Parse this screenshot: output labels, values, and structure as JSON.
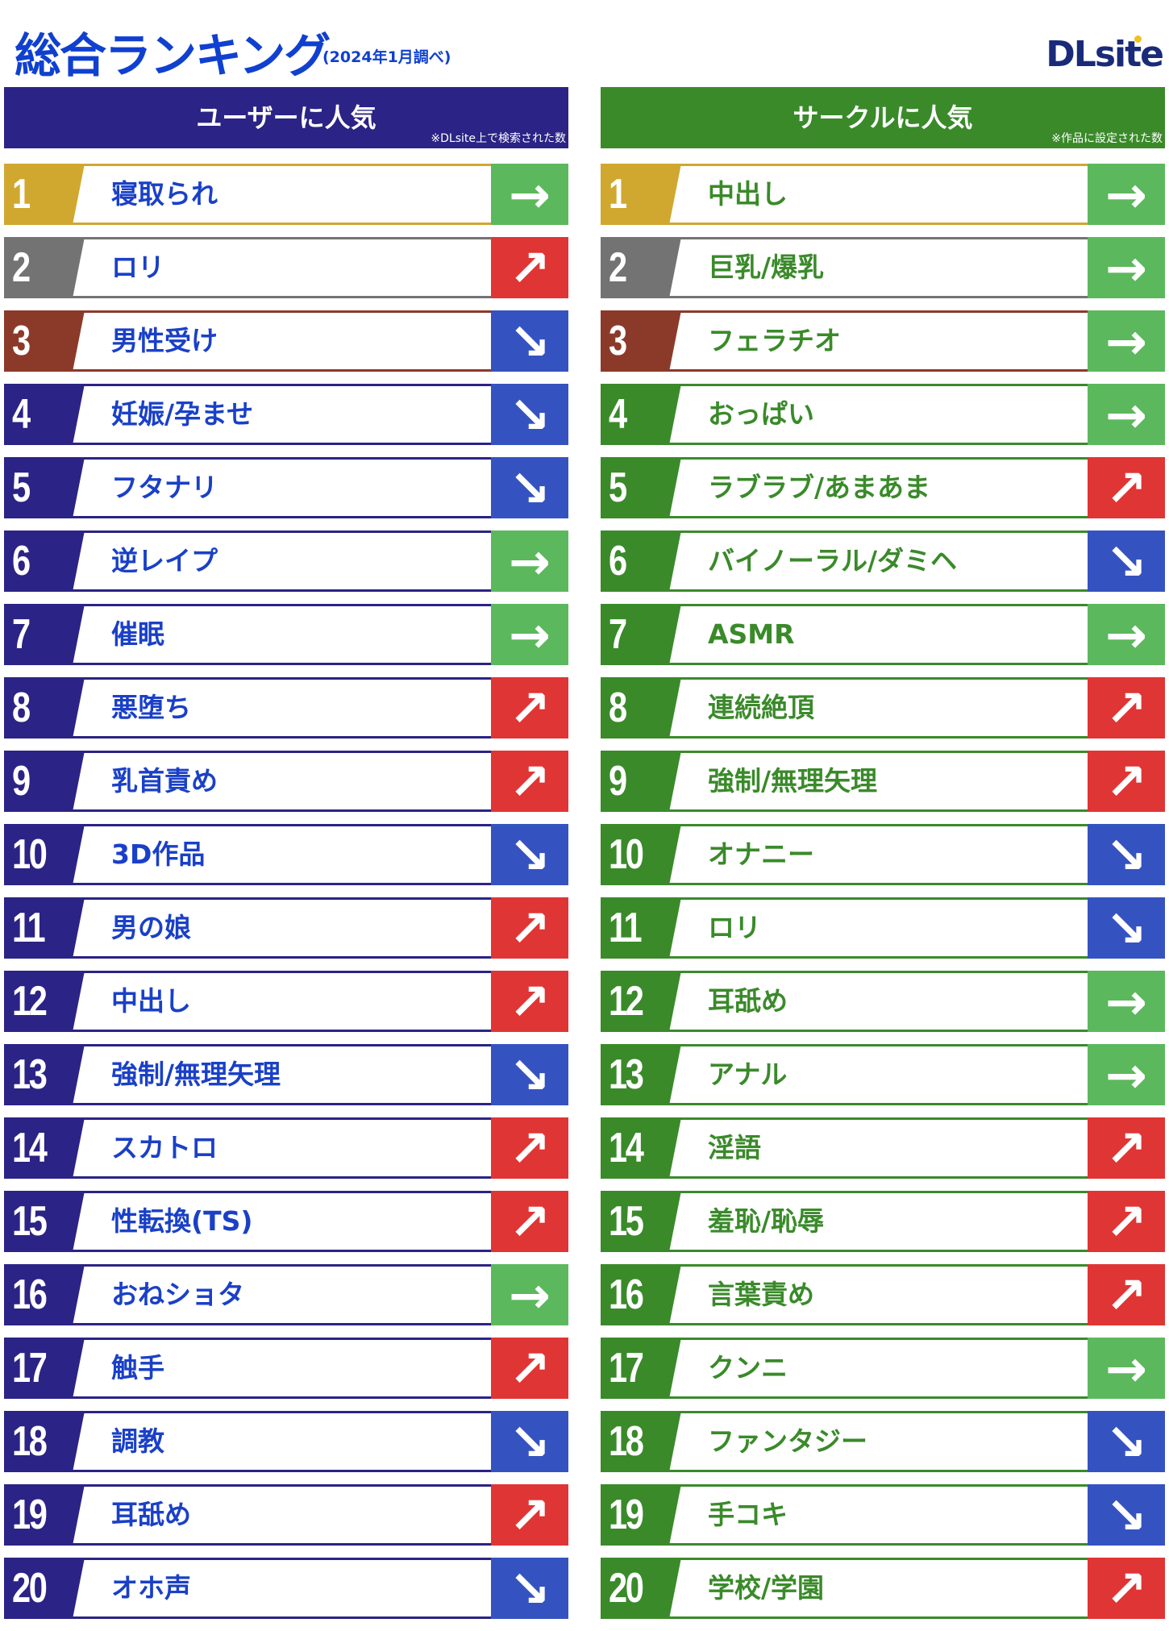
{
  "title": "総合ランキング",
  "subtitle": "(2024年1月調べ)",
  "logo": "DLsite",
  "colors": {
    "user_header": "#2b2385",
    "circle_header": "#3a8a2a",
    "user_text": "#1a40c8",
    "circle_text": "#3a8a2a",
    "rank1": "#d0a830",
    "rank2": "#737373",
    "rank3": "#8b3a2a",
    "up": "#e03535",
    "same": "#5cb85c",
    "down": "#3553c0"
  },
  "trend_icons": {
    "up": "↗",
    "same": "→",
    "down": "↘"
  },
  "user": {
    "header": "ユーザーに人気",
    "note": "※DLsite上で検索された数",
    "items": [
      {
        "rank": "1",
        "label": "寝取られ",
        "trend": "same"
      },
      {
        "rank": "2",
        "label": "ロリ",
        "trend": "up"
      },
      {
        "rank": "3",
        "label": "男性受け",
        "trend": "down"
      },
      {
        "rank": "4",
        "label": "妊娠/孕ませ",
        "trend": "down"
      },
      {
        "rank": "5",
        "label": "フタナリ",
        "trend": "down"
      },
      {
        "rank": "6",
        "label": "逆レイプ",
        "trend": "same"
      },
      {
        "rank": "7",
        "label": "催眠",
        "trend": "same"
      },
      {
        "rank": "8",
        "label": "悪堕ち",
        "trend": "up"
      },
      {
        "rank": "9",
        "label": "乳首責め",
        "trend": "up"
      },
      {
        "rank": "10",
        "label": "3D作品",
        "trend": "down"
      },
      {
        "rank": "11",
        "label": "男の娘",
        "trend": "up"
      },
      {
        "rank": "12",
        "label": "中出し",
        "trend": "up"
      },
      {
        "rank": "13",
        "label": "強制/無理矢理",
        "trend": "down"
      },
      {
        "rank": "14",
        "label": "スカトロ",
        "trend": "up"
      },
      {
        "rank": "15",
        "label": "性転換(TS)",
        "trend": "up"
      },
      {
        "rank": "16",
        "label": "おねショタ",
        "trend": "same"
      },
      {
        "rank": "17",
        "label": "触手",
        "trend": "up"
      },
      {
        "rank": "18",
        "label": "調教",
        "trend": "down"
      },
      {
        "rank": "19",
        "label": "耳舐め",
        "trend": "up"
      },
      {
        "rank": "20",
        "label": "オホ声",
        "trend": "down"
      }
    ]
  },
  "circle": {
    "header": "サークルに人気",
    "note": "※作品に設定された数",
    "items": [
      {
        "rank": "1",
        "label": "中出し",
        "trend": "same"
      },
      {
        "rank": "2",
        "label": "巨乳/爆乳",
        "trend": "same"
      },
      {
        "rank": "3",
        "label": "フェラチオ",
        "trend": "same"
      },
      {
        "rank": "4",
        "label": "おっぱい",
        "trend": "same"
      },
      {
        "rank": "5",
        "label": "ラブラブ/あまあま",
        "trend": "up"
      },
      {
        "rank": "6",
        "label": "バイノーラル/ダミヘ",
        "trend": "down"
      },
      {
        "rank": "7",
        "label": "ASMR",
        "trend": "same"
      },
      {
        "rank": "8",
        "label": "連続絶頂",
        "trend": "up"
      },
      {
        "rank": "9",
        "label": "強制/無理矢理",
        "trend": "up"
      },
      {
        "rank": "10",
        "label": "オナニー",
        "trend": "down"
      },
      {
        "rank": "11",
        "label": "ロリ",
        "trend": "down"
      },
      {
        "rank": "12",
        "label": "耳舐め",
        "trend": "same"
      },
      {
        "rank": "13",
        "label": "アナル",
        "trend": "same"
      },
      {
        "rank": "14",
        "label": "淫語",
        "trend": "up"
      },
      {
        "rank": "15",
        "label": "羞恥/恥辱",
        "trend": "up"
      },
      {
        "rank": "16",
        "label": "言葉責め",
        "trend": "up"
      },
      {
        "rank": "17",
        "label": "クンニ",
        "trend": "same"
      },
      {
        "rank": "18",
        "label": "ファンタジー",
        "trend": "down"
      },
      {
        "rank": "19",
        "label": "手コキ",
        "trend": "down"
      },
      {
        "rank": "20",
        "label": "学校/学園",
        "trend": "up"
      }
    ]
  }
}
